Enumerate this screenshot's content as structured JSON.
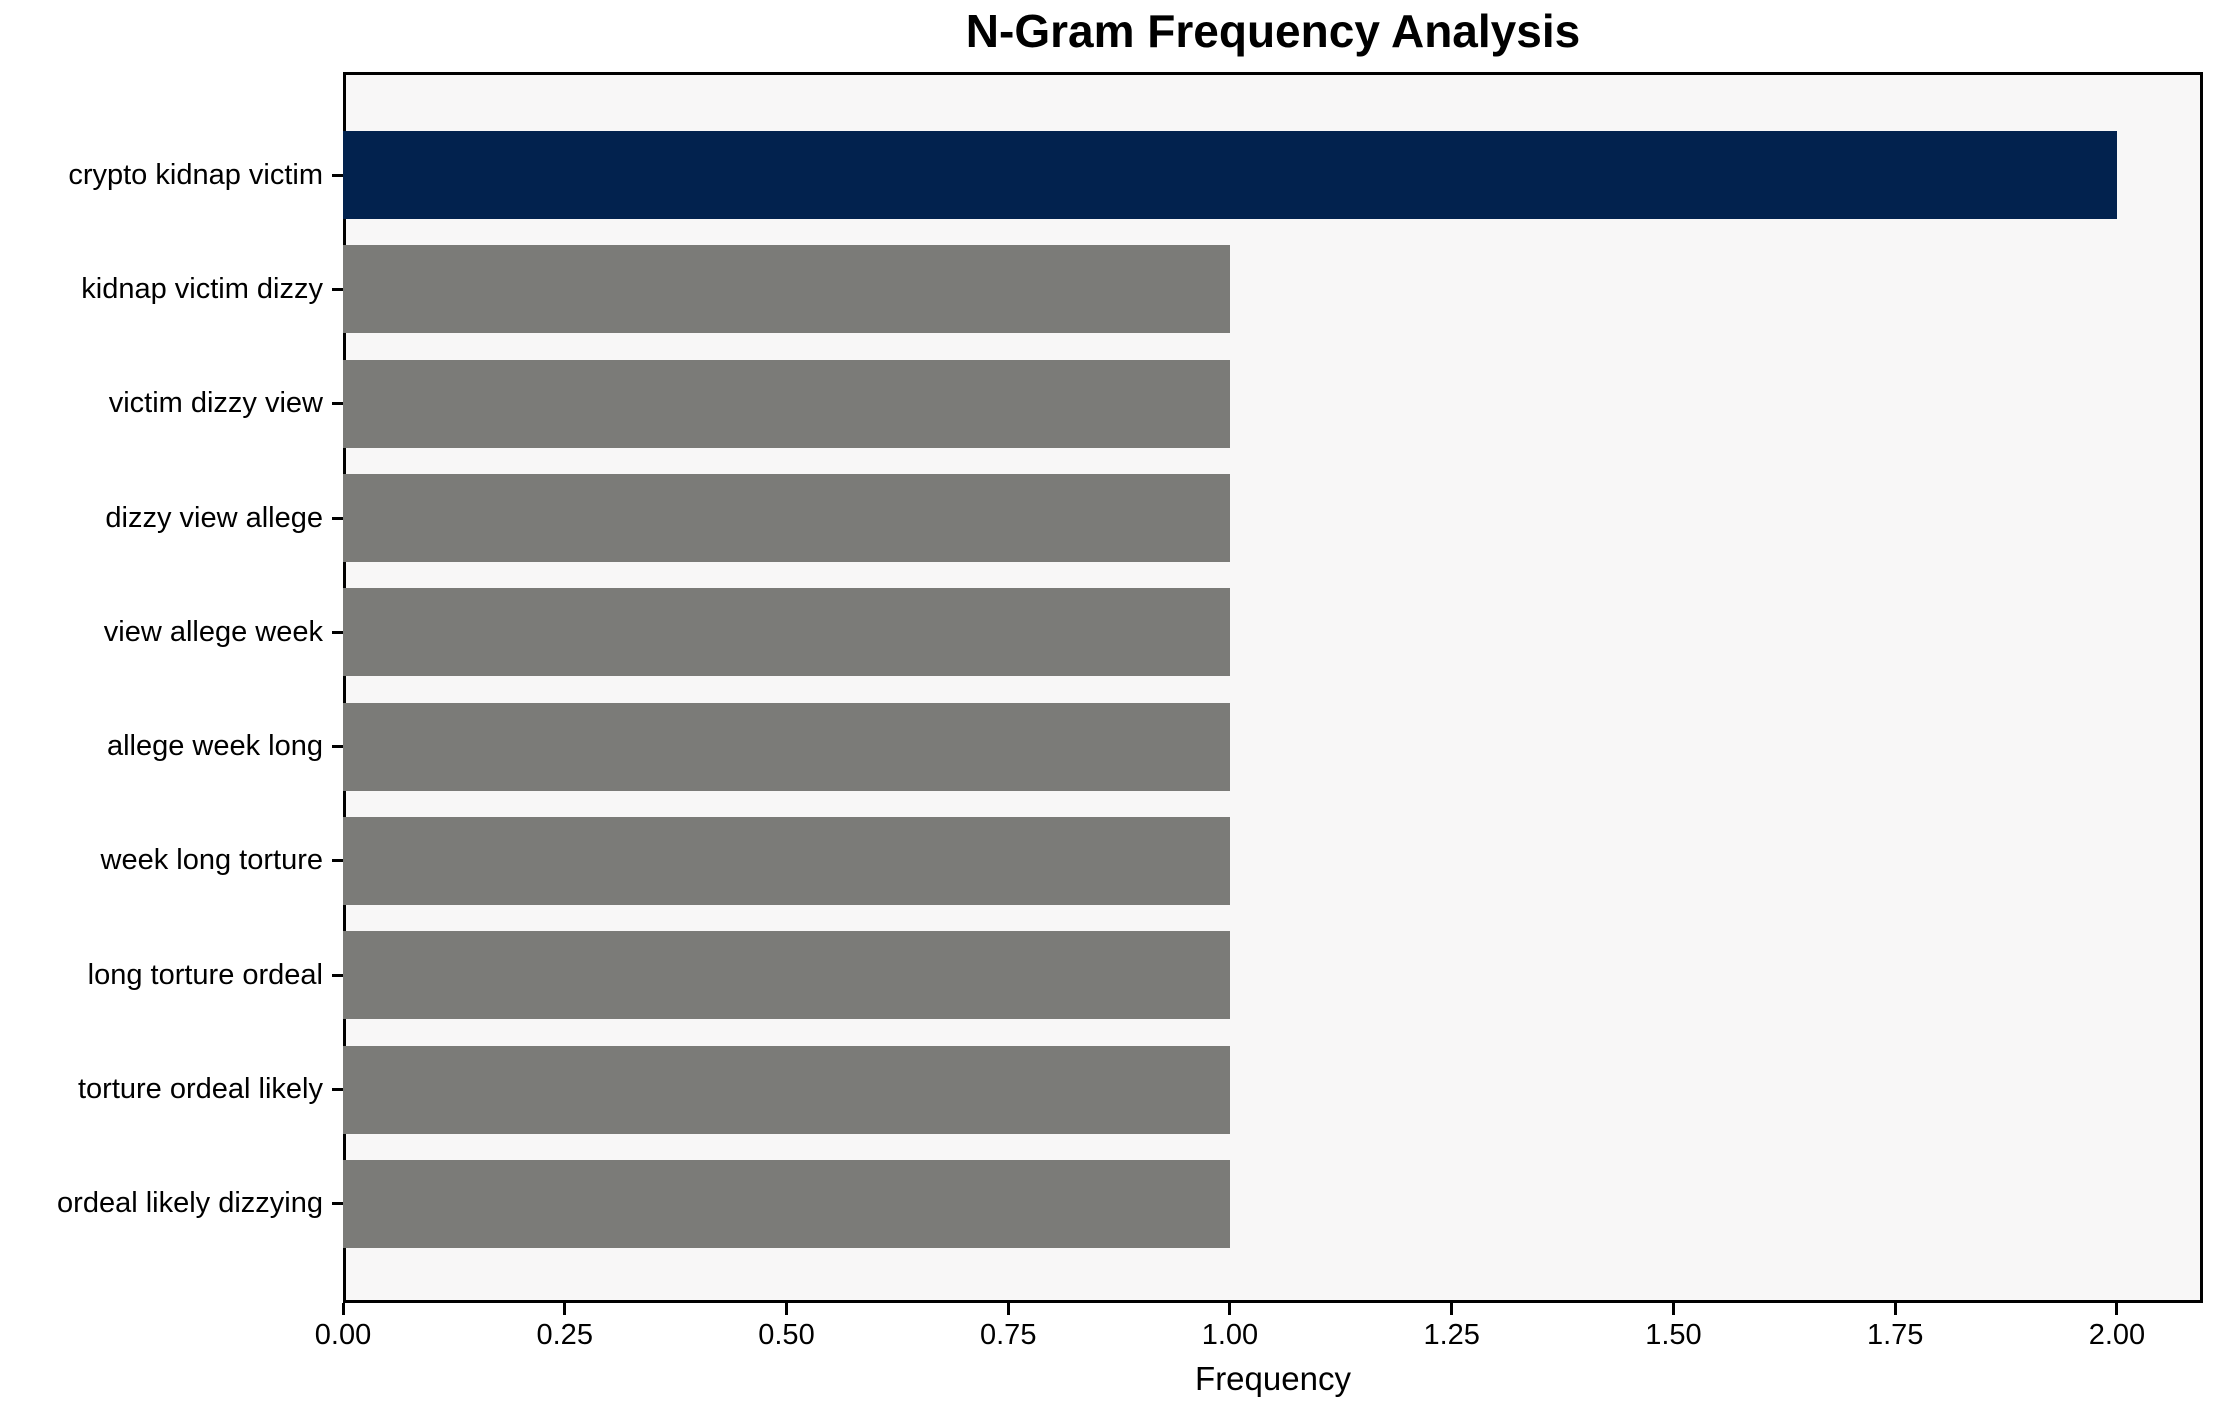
{
  "chart_data": {
    "type": "bar",
    "orientation": "horizontal",
    "title": "N-Gram Frequency Analysis",
    "xlabel": "Frequency",
    "ylabel": "",
    "categories": [
      "crypto kidnap victim",
      "kidnap victim dizzy",
      "victim dizzy view",
      "dizzy view allege",
      "view allege week",
      "allege week long",
      "week long torture",
      "long torture ordeal",
      "torture ordeal likely",
      "ordeal likely dizzying"
    ],
    "values": [
      2.0,
      1.0,
      1.0,
      1.0,
      1.0,
      1.0,
      1.0,
      1.0,
      1.0,
      1.0
    ],
    "xlim": [
      0,
      2.097
    ],
    "x_ticks": [
      0.0,
      0.25,
      0.5,
      0.75,
      1.0,
      1.25,
      1.5,
      1.75,
      2.0
    ],
    "x_tick_labels": [
      "0.00",
      "0.25",
      "0.50",
      "0.75",
      "1.00",
      "1.25",
      "1.50",
      "1.75",
      "2.00"
    ],
    "grid": false,
    "legend": false,
    "colors": {
      "highlight_bar": "#02224e",
      "default_bar": "#7b7b78",
      "plot_background": "#f8f7f7",
      "figure_background": "#ffffff",
      "axis": "#000000",
      "text": "#000000"
    },
    "bar_colors": [
      "#02224e",
      "#7b7b78",
      "#7b7b78",
      "#7b7b78",
      "#7b7b78",
      "#7b7b78",
      "#7b7b78",
      "#7b7b78",
      "#7b7b78",
      "#7b7b78"
    ]
  }
}
